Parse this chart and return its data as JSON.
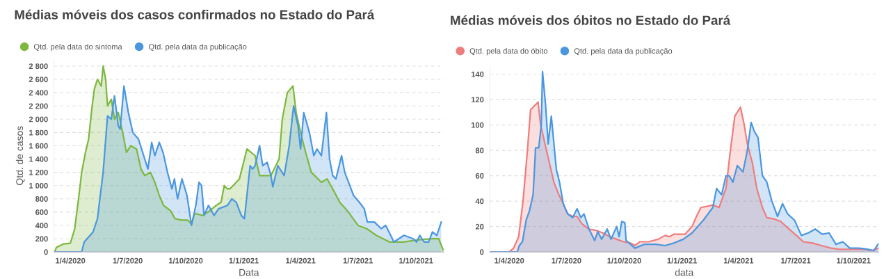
{
  "chart_data": [
    {
      "type": "area",
      "title": "Médias móveis dos casos confirmados no Estado do Pará",
      "xlabel": "Data",
      "ylabel": "Qtd. de casos",
      "legend": "top left",
      "grid": "y",
      "xlim": [
        "2020-03-06",
        "2021-11-14"
      ],
      "xticks": [
        {
          "value": "2020-04-01",
          "label": "1/4/2020"
        },
        {
          "value": "2020-07-01",
          "label": "1/7/2020"
        },
        {
          "value": "2020-10-01",
          "label": "1/10/2020"
        },
        {
          "value": "2021-01-01",
          "label": "1/1/2021"
        },
        {
          "value": "2021-04-01",
          "label": "1/4/2021"
        },
        {
          "value": "2021-07-01",
          "label": "1/7/2021"
        },
        {
          "value": "2021-10-01",
          "label": "1/10/2021"
        }
      ],
      "ylim": [
        0,
        2900
      ],
      "yticks": [
        0,
        200,
        400,
        600,
        800,
        {
          "value": 1000,
          "label": "1 000"
        },
        {
          "value": 1200,
          "label": "1 200"
        },
        {
          "value": 1400,
          "label": "1 400"
        },
        {
          "value": 1600,
          "label": "1 600"
        },
        {
          "value": 1800,
          "label": "1 800"
        },
        {
          "value": 2000,
          "label": "2 000"
        },
        {
          "value": 2200,
          "label": "2 200"
        },
        {
          "value": 2400,
          "label": "2 400"
        },
        {
          "value": 2600,
          "label": "2 600"
        },
        {
          "value": 2800,
          "label": "2 800"
        }
      ],
      "series": [
        {
          "name": "Qtd. pela data do sintoma",
          "color": "#7cb83e",
          "x": [
            "2020-03-07",
            "2020-03-10",
            "2020-03-21",
            "2020-04-01",
            "2020-04-08",
            "2020-04-14",
            "2020-04-19",
            "2020-04-25",
            "2020-04-30",
            "2020-05-05",
            "2020-05-09",
            "2020-05-14",
            "2020-05-20",
            "2020-05-23",
            "2020-05-27",
            "2020-05-30",
            "2020-06-05",
            "2020-06-10",
            "2020-06-16",
            "2020-06-23",
            "2020-06-29",
            "2020-07-06",
            "2020-07-15",
            "2020-07-22",
            "2020-07-28",
            "2020-08-06",
            "2020-08-13",
            "2020-08-20",
            "2020-08-27",
            "2020-09-07",
            "2020-09-14",
            "2020-09-25",
            "2020-10-04",
            "2020-10-10",
            "2020-10-15",
            "2020-10-28",
            "2020-11-08",
            "2020-11-18",
            "2020-11-26",
            "2020-12-01",
            "2020-12-06",
            "2020-12-10",
            "2020-12-25",
            "2021-01-06",
            "2021-01-19",
            "2021-01-26",
            "2021-02-13",
            "2021-02-26",
            "2021-03-03",
            "2021-03-11",
            "2021-03-20",
            "2021-03-25",
            "2021-04-01",
            "2021-04-09",
            "2021-04-18",
            "2021-05-04",
            "2021-05-13",
            "2021-05-22",
            "2021-06-02",
            "2021-06-16",
            "2021-07-01",
            "2021-07-15",
            "2021-07-30",
            "2021-08-20",
            "2021-09-11",
            "2021-10-03",
            "2021-10-25",
            "2021-11-06",
            "2021-11-13"
          ],
          "values": [
            0,
            70,
            120,
            130,
            350,
            800,
            1200,
            1500,
            1700,
            2150,
            2450,
            2600,
            2500,
            2800,
            2600,
            2200,
            2300,
            2000,
            2100,
            1800,
            1500,
            1600,
            1550,
            1250,
            1150,
            1200,
            1050,
            850,
            700,
            620,
            500,
            480,
            480,
            420,
            580,
            550,
            620,
            700,
            750,
            1000,
            950,
            950,
            1100,
            1550,
            1450,
            1150,
            1150,
            1400,
            2000,
            2400,
            2500,
            2100,
            1800,
            1500,
            1200,
            1050,
            1100,
            950,
            750,
            600,
            400,
            350,
            250,
            150,
            150,
            180,
            200,
            200,
            30
          ]
        },
        {
          "name": "Qtd. pela data da publicação",
          "color": "#4a97e0",
          "x": [
            "2020-03-07",
            "2020-04-19",
            "2020-04-23",
            "2020-05-07",
            "2020-05-14",
            "2020-05-23",
            "2020-05-30",
            "2020-06-05",
            "2020-06-10",
            "2020-06-16",
            "2020-06-19",
            "2020-06-25",
            "2020-07-02",
            "2020-07-09",
            "2020-07-18",
            "2020-07-28",
            "2020-08-02",
            "2020-08-08",
            "2020-08-13",
            "2020-08-20",
            "2020-08-26",
            "2020-09-02",
            "2020-09-09",
            "2020-09-13",
            "2020-09-18",
            "2020-09-25",
            "2020-10-03",
            "2020-10-10",
            "2020-10-17",
            "2020-10-22",
            "2020-10-26",
            "2020-10-30",
            "2020-11-06",
            "2020-11-15",
            "2020-11-22",
            "2020-12-06",
            "2020-12-13",
            "2020-12-20",
            "2020-12-28",
            "2021-01-02",
            "2021-01-11",
            "2021-01-15",
            "2021-01-19",
            "2021-01-26",
            "2021-01-31",
            "2021-02-07",
            "2021-02-13",
            "2021-02-16",
            "2021-02-24",
            "2021-03-06",
            "2021-03-14",
            "2021-03-21",
            "2021-03-28",
            "2021-04-01",
            "2021-04-06",
            "2021-04-15",
            "2021-04-22",
            "2021-04-27",
            "2021-05-04",
            "2021-05-12",
            "2021-05-17",
            "2021-05-22",
            "2021-05-27",
            "2021-06-05",
            "2021-06-10",
            "2021-06-16",
            "2021-06-24",
            "2021-07-03",
            "2021-07-11",
            "2021-07-16",
            "2021-07-27",
            "2021-08-07",
            "2021-08-14",
            "2021-08-27",
            "2021-09-12",
            "2021-09-26",
            "2021-10-02",
            "2021-10-07",
            "2021-10-14",
            "2021-10-21",
            "2021-10-27",
            "2021-11-03",
            "2021-11-10"
          ],
          "values": [
            0,
            0,
            150,
            300,
            500,
            1200,
            2050,
            2000,
            2350,
            1900,
            1850,
            2500,
            2100,
            1800,
            1700,
            1400,
            1250,
            1650,
            1450,
            1650,
            1500,
            1200,
            950,
            1100,
            800,
            1100,
            850,
            400,
            700,
            1050,
            1000,
            550,
            700,
            550,
            650,
            700,
            800,
            750,
            550,
            500,
            1300,
            1250,
            1300,
            1600,
            1300,
            1350,
            1150,
            980,
            1300,
            1150,
            1600,
            2200,
            1900,
            1550,
            2100,
            1800,
            1450,
            1550,
            1450,
            2100,
            1400,
            1150,
            1100,
            1450,
            1200,
            1050,
            850,
            750,
            650,
            450,
            450,
            350,
            400,
            150,
            250,
            200,
            150,
            250,
            150,
            150,
            300,
            250,
            450
          ]
        }
      ]
    },
    {
      "type": "area",
      "title": "Médias móveis dos óbitos no Estado do Pará",
      "xlabel": "data",
      "legend": "top left",
      "grid": "y",
      "xlim": [
        "2020-03-01",
        "2021-11-10"
      ],
      "xticks": [
        {
          "value": "2020-04-01",
          "label": "1/4/2020"
        },
        {
          "value": "2020-07-01",
          "label": "1/7/2020"
        },
        {
          "value": "2020-10-01",
          "label": "1/10/2020"
        },
        {
          "value": "2021-01-01",
          "label": "1/1/2021"
        },
        {
          "value": "2021-04-01",
          "label": "1/4/2021"
        },
        {
          "value": "2021-07-01",
          "label": "1/7/2021"
        },
        {
          "value": "2021-10-01",
          "label": "1/10/2021"
        }
      ],
      "ylim": [
        0,
        145
      ],
      "yticks": [
        0,
        20,
        40,
        60,
        80,
        100,
        120,
        140
      ],
      "series": [
        {
          "name": "Qtd. pela data do óbito",
          "color": "#ee7d7d",
          "x": [
            "2020-03-01",
            "2020-04-01",
            "2020-04-08",
            "2020-04-16",
            "2020-04-23",
            "2020-04-30",
            "2020-05-05",
            "2020-05-11",
            "2020-05-17",
            "2020-05-21",
            "2020-05-28",
            "2020-06-04",
            "2020-06-11",
            "2020-06-19",
            "2020-06-26",
            "2020-07-03",
            "2020-07-11",
            "2020-07-18",
            "2020-07-26",
            "2020-08-06",
            "2020-08-17",
            "2020-08-28",
            "2020-09-08",
            "2020-09-19",
            "2020-09-30",
            "2020-10-11",
            "2020-10-18",
            "2020-10-26",
            "2020-11-09",
            "2020-11-24",
            "2020-12-05",
            "2020-12-12",
            "2020-12-19",
            "2021-01-06",
            "2021-01-17",
            "2021-01-24",
            "2021-01-31",
            "2021-02-11",
            "2021-02-19",
            "2021-03-01",
            "2021-03-12",
            "2021-03-19",
            "2021-03-26",
            "2021-04-04",
            "2021-04-10",
            "2021-04-15",
            "2021-04-23",
            "2021-04-30",
            "2021-05-09",
            "2021-05-16",
            "2021-05-27",
            "2021-06-07",
            "2021-06-18",
            "2021-07-02",
            "2021-07-13",
            "2021-07-28",
            "2021-08-11",
            "2021-08-26",
            "2021-09-09",
            "2021-10-01",
            "2021-10-19",
            "2021-10-30",
            "2021-11-10"
          ],
          "values": [
            0,
            0,
            3,
            12,
            40,
            80,
            112,
            115,
            118,
            100,
            85,
            70,
            55,
            45,
            38,
            30,
            28,
            28,
            22,
            18,
            17,
            15,
            12,
            10,
            8,
            7,
            5,
            8,
            8,
            10,
            13,
            12,
            14,
            14,
            20,
            28,
            35,
            36,
            37,
            35,
            50,
            80,
            107,
            114,
            100,
            85,
            70,
            50,
            35,
            27,
            26,
            24,
            19,
            13,
            8,
            7,
            5,
            3,
            2,
            2,
            2,
            1,
            3
          ]
        },
        {
          "name": "Qtd. pela data da publicação",
          "color": "#4a97e0",
          "x": [
            "2020-03-01",
            "2020-04-14",
            "2020-04-17",
            "2020-04-22",
            "2020-04-28",
            "2020-05-03",
            "2020-05-09",
            "2020-05-13",
            "2020-05-18",
            "2020-05-22",
            "2020-05-24",
            "2020-05-29",
            "2020-06-02",
            "2020-06-07",
            "2020-06-15",
            "2020-06-20",
            "2020-06-26",
            "2020-07-03",
            "2020-07-11",
            "2020-07-18",
            "2020-07-24",
            "2020-07-29",
            "2020-08-06",
            "2020-08-15",
            "2020-08-20",
            "2020-08-26",
            "2020-09-04",
            "2020-09-10",
            "2020-09-19",
            "2020-09-23",
            "2020-09-27",
            "2020-10-02",
            "2020-10-04",
            "2020-10-18",
            "2020-11-02",
            "2020-11-20",
            "2020-12-05",
            "2020-12-19",
            "2021-01-03",
            "2021-01-17",
            "2021-02-04",
            "2021-02-19",
            "2021-02-25",
            "2021-03-05",
            "2021-03-12",
            "2021-03-17",
            "2021-03-23",
            "2021-03-30",
            "2021-04-08",
            "2021-04-15",
            "2021-04-21",
            "2021-04-26",
            "2021-05-02",
            "2021-05-09",
            "2021-05-16",
            "2021-05-24",
            "2021-06-02",
            "2021-06-10",
            "2021-06-18",
            "2021-06-29",
            "2021-07-10",
            "2021-07-21",
            "2021-08-01",
            "2021-08-12",
            "2021-08-23",
            "2021-09-03",
            "2021-09-14",
            "2021-09-25",
            "2021-10-10",
            "2021-10-24",
            "2021-11-02",
            "2021-11-09"
          ],
          "values": [
            0,
            0,
            5,
            8,
            25,
            32,
            45,
            82,
            82,
            100,
            142,
            115,
            85,
            107,
            65,
            55,
            38,
            30,
            27,
            34,
            27,
            30,
            18,
            9,
            16,
            10,
            18,
            10,
            20,
            12,
            24,
            23,
            9,
            3,
            6,
            6,
            5,
            7,
            10,
            15,
            25,
            35,
            50,
            45,
            60,
            60,
            55,
            68,
            63,
            80,
            102,
            95,
            90,
            60,
            55,
            40,
            28,
            38,
            30,
            25,
            13,
            15,
            18,
            14,
            15,
            6,
            8,
            3,
            3,
            2,
            1,
            6
          ]
        }
      ]
    }
  ]
}
